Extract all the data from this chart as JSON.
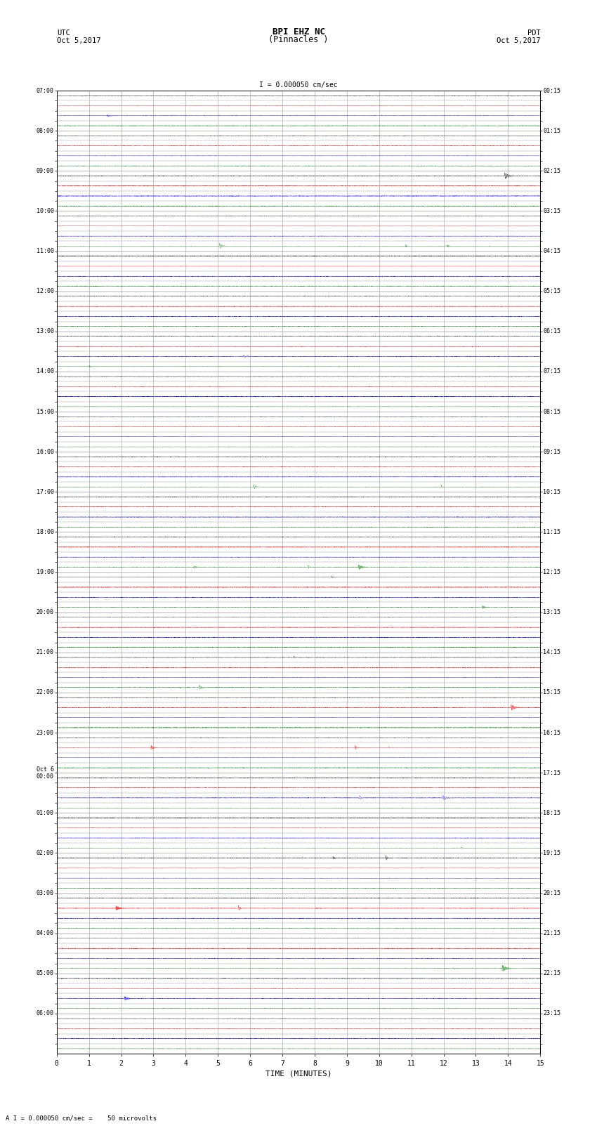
{
  "title_line1": "BPI EHZ NC",
  "title_line2": "(Pinnacles )",
  "scale_label": "I = 0.000050 cm/sec",
  "left_header_line1": "UTC",
  "left_header_line2": "Oct 5,2017",
  "right_header_line1": "PDT",
  "right_header_line2": "Oct 5,2017",
  "footer_note": "A I = 0.000050 cm/sec =    50 microvolts",
  "xlabel": "TIME (MINUTES)",
  "left_times": [
    "07:00",
    "",
    "",
    "",
    "08:00",
    "",
    "",
    "",
    "09:00",
    "",
    "",
    "",
    "10:00",
    "",
    "",
    "",
    "11:00",
    "",
    "",
    "",
    "12:00",
    "",
    "",
    "",
    "13:00",
    "",
    "",
    "",
    "14:00",
    "",
    "",
    "",
    "15:00",
    "",
    "",
    "",
    "16:00",
    "",
    "",
    "",
    "17:00",
    "",
    "",
    "",
    "18:00",
    "",
    "",
    "",
    "19:00",
    "",
    "",
    "",
    "20:00",
    "",
    "",
    "",
    "21:00",
    "",
    "",
    "",
    "22:00",
    "",
    "",
    "",
    "23:00",
    "",
    "",
    "",
    "Oct 6\n00:00",
    "",
    "",
    "",
    "01:00",
    "",
    "",
    "",
    "02:00",
    "",
    "",
    "",
    "03:00",
    "",
    "",
    "",
    "04:00",
    "",
    "",
    "",
    "05:00",
    "",
    "",
    "",
    "06:00",
    "",
    "",
    ""
  ],
  "right_times": [
    "00:15",
    "",
    "",
    "",
    "01:15",
    "",
    "",
    "",
    "02:15",
    "",
    "",
    "",
    "03:15",
    "",
    "",
    "",
    "04:15",
    "",
    "",
    "",
    "05:15",
    "",
    "",
    "",
    "06:15",
    "",
    "",
    "",
    "07:15",
    "",
    "",
    "",
    "08:15",
    "",
    "",
    "",
    "09:15",
    "",
    "",
    "",
    "10:15",
    "",
    "",
    "",
    "11:15",
    "",
    "",
    "",
    "12:15",
    "",
    "",
    "",
    "13:15",
    "",
    "",
    "",
    "14:15",
    "",
    "",
    "",
    "15:15",
    "",
    "",
    "",
    "16:15",
    "",
    "",
    "",
    "17:15",
    "",
    "",
    "",
    "18:15",
    "",
    "",
    "",
    "19:15",
    "",
    "",
    "",
    "20:15",
    "",
    "",
    "",
    "21:15",
    "",
    "",
    "",
    "22:15",
    "",
    "",
    "",
    "23:15",
    "",
    "",
    ""
  ],
  "num_rows": 96,
  "bg_color": "#ffffff",
  "trace_colors": [
    "#000000",
    "#ff0000",
    "#0000ff",
    "#008000"
  ],
  "grid_color": "#999999",
  "seed": 42
}
